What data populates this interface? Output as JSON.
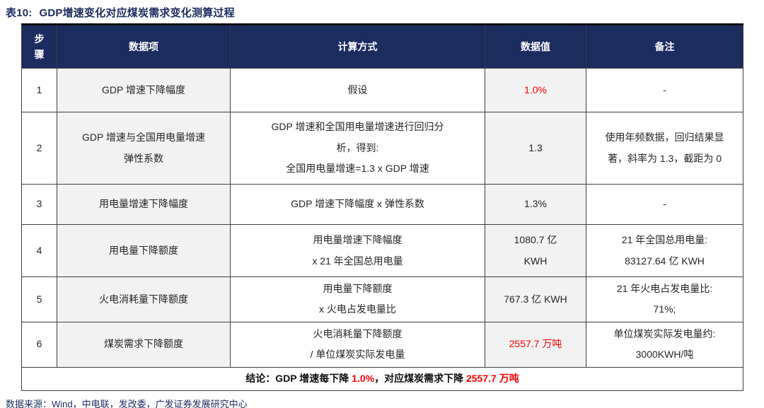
{
  "title": {
    "label": "表10:",
    "text": "GDP增速变化对应煤炭需求变化测算过程"
  },
  "colors": {
    "header_navy": "#1b2c5f",
    "highlight_red": "#ff0000",
    "shaded_column_gray": "#f2f2f2"
  },
  "table": {
    "columns": [
      {
        "key": "step",
        "lines": [
          "步",
          "骤"
        ]
      },
      {
        "key": "item",
        "lines": [
          "数据项"
        ]
      },
      {
        "key": "method",
        "lines": [
          "计算方式"
        ]
      },
      {
        "key": "value",
        "lines": [
          "数据值"
        ]
      },
      {
        "key": "note",
        "lines": [
          "备注"
        ]
      }
    ],
    "rows": [
      {
        "step": "1",
        "item": [
          "GDP 增速下降幅度"
        ],
        "method": [
          "假设"
        ],
        "value": [
          "1.0%"
        ],
        "value_color": "red",
        "note": [
          "-"
        ]
      },
      {
        "step": "2",
        "item": [
          "GDP 增速与全国用电量增速",
          "弹性系数"
        ],
        "method": [
          "GDP 增速和全国用电量增速进行回归分",
          "析，得到:",
          "全国用电量增速=1.3 x GDP 增速"
        ],
        "value": [
          "1.3"
        ],
        "value_color": "black",
        "note": [
          "使用年频数据，回归结果显",
          "著，斜率为 1.3，截距为 0"
        ]
      },
      {
        "step": "3",
        "item": [
          "用电量增速下降幅度"
        ],
        "method": [
          "GDP 增速下降幅度  x  弹性系数"
        ],
        "value": [
          "1.3%"
        ],
        "value_color": "black",
        "note": [
          "-"
        ]
      },
      {
        "step": "4",
        "item": [
          "用电量下降额度"
        ],
        "method": [
          "用电量增速下降幅度",
          "x 21 年全国总用电量"
        ],
        "value": [
          "1080.7 亿",
          "KWH"
        ],
        "value_color": "black",
        "note": [
          "21 年全国总用电量:",
          "83127.64 亿 KWH"
        ]
      },
      {
        "step": "5",
        "item": [
          "火电消耗量下降额度"
        ],
        "method": [
          "用电量下降额度",
          "x  火电占发电量比"
        ],
        "value": [
          "767.3 亿 KWH"
        ],
        "value_color": "black",
        "note": [
          "21 年火电占发电量比:",
          "71%;"
        ]
      },
      {
        "step": "6",
        "item": [
          "煤炭需求下降额度"
        ],
        "method": [
          "火电消耗量下降额度",
          "/ 单位煤炭实际发电量"
        ],
        "value": [
          "2557.7 万吨"
        ],
        "value_color": "red",
        "note": [
          "单位煤炭实际发电量约:",
          "3000KWH/吨"
        ]
      }
    ],
    "conclusion": [
      {
        "text": "结论：GDP 增速每下降 ",
        "red": false
      },
      {
        "text": "1.0%",
        "red": true
      },
      {
        "text": "，对应煤炭需求下降 ",
        "red": false
      },
      {
        "text": "2557.7 万吨",
        "red": true
      }
    ]
  },
  "source": "数据来源：Wind，中电联，发改委，广发证券发展研究中心"
}
